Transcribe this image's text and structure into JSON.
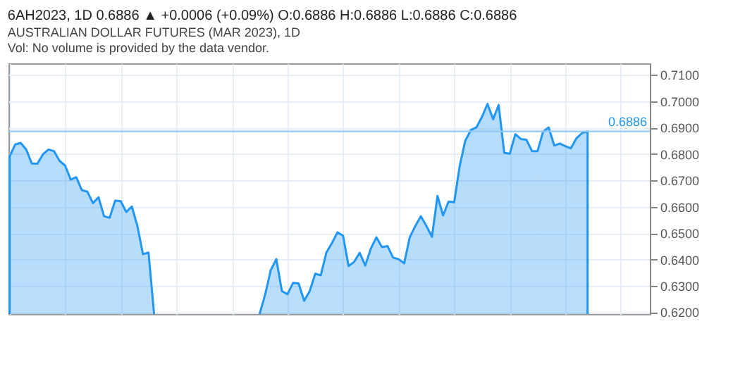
{
  "chart_data": {
    "type": "area",
    "title": "6AH2023, 1D 0.6886 ▲ +0.0006 (+0.09%) O:0.6886 H:0.6886 L:0.6886 C:0.6886",
    "subtitle": "AUSTRALIAN DOLLAR FUTURES (MAR 2023), 1D",
    "annotations": [
      "Vol: No volume is provided by the data vendor."
    ],
    "categories": [
      null,
      null,
      null,
      null,
      null,
      null,
      null,
      null,
      null,
      null,
      null,
      null,
      null,
      null,
      null,
      null,
      null,
      null,
      null,
      null,
      null,
      null,
      null,
      null,
      null,
      null,
      null,
      null,
      null,
      null,
      null,
      null,
      null,
      null,
      null,
      null,
      null,
      null,
      null,
      null,
      null,
      null,
      null,
      null,
      null,
      null,
      null,
      null,
      null,
      null,
      null,
      null,
      null,
      null,
      null,
      null,
      null,
      null,
      null,
      null,
      null,
      null,
      null,
      null,
      null,
      null,
      null,
      null,
      null,
      null,
      null,
      null,
      null,
      null,
      null,
      null,
      null,
      null,
      null,
      null,
      null,
      null,
      null,
      null,
      null,
      null,
      null,
      null,
      null,
      null,
      null,
      null,
      null,
      null,
      null,
      null,
      null,
      null,
      null,
      null,
      null,
      null,
      null,
      null,
      null,
      null,
      null,
      null,
      null,
      null,
      null,
      null,
      null,
      null,
      null,
      null
    ],
    "series": [
      {
        "color": "#2196f3",
        "values": [
          0.679,
          0.6836,
          0.6842,
          0.6817,
          0.6764,
          0.6763,
          0.6799,
          0.6817,
          0.6811,
          0.6774,
          0.6756,
          0.6703,
          0.6712,
          0.6663,
          0.6657,
          0.6614,
          0.6636,
          0.6564,
          0.6558,
          0.6623,
          0.6621,
          0.658,
          0.6601,
          0.6527,
          0.642,
          0.6426,
          0.6194,
          null,
          null,
          null,
          null,
          null,
          null,
          null,
          null,
          null,
          null,
          null,
          null,
          null,
          null,
          null,
          null,
          null,
          null,
          0.6194,
          0.6268,
          0.636,
          0.6401,
          0.628,
          0.6268,
          0.6311,
          0.6309,
          0.6243,
          0.628,
          0.6346,
          0.634,
          0.6426,
          0.6462,
          0.6503,
          0.649,
          0.6375,
          0.6391,
          0.6425,
          0.6377,
          0.6441,
          0.6484,
          0.6447,
          0.6451,
          0.6407,
          0.6401,
          0.6385,
          0.6484,
          0.6527,
          0.6564,
          0.6527,
          0.6486,
          0.6641,
          0.6567,
          0.662,
          0.6617,
          0.6756,
          0.6851,
          0.6891,
          0.6901,
          0.6941,
          0.699,
          0.6932,
          0.6986,
          0.6805,
          0.6801,
          0.6875,
          0.6857,
          0.6854,
          0.6811,
          0.6811,
          0.6885,
          0.6901,
          0.6832,
          0.684,
          0.683,
          0.6822,
          0.686,
          0.6879,
          0.6886,
          null,
          null,
          null,
          null,
          null,
          null,
          null,
          null,
          null,
          null,
          null
        ]
      }
    ],
    "ylim": [
      0.6193,
      0.7144
    ],
    "yticks": [
      {
        "value": 0.62,
        "label": "0.6200"
      },
      {
        "value": 0.63,
        "label": "0.6300"
      },
      {
        "value": 0.64,
        "label": "0.6400"
      },
      {
        "value": 0.65,
        "label": "0.6500"
      },
      {
        "value": 0.66,
        "label": "0.6600"
      },
      {
        "value": 0.67,
        "label": "0.6700"
      },
      {
        "value": 0.68,
        "label": "0.6800"
      },
      {
        "value": 0.69,
        "label": "0.6900"
      },
      {
        "value": 0.7,
        "label": "0.7000"
      },
      {
        "value": 0.71,
        "label": "0.7100"
      }
    ],
    "ref_lines": [
      {
        "axis": "y",
        "value": 0.6886,
        "label": "0.6886",
        "color": "#90caf9"
      }
    ],
    "grid": true,
    "tick_labels": "y"
  }
}
